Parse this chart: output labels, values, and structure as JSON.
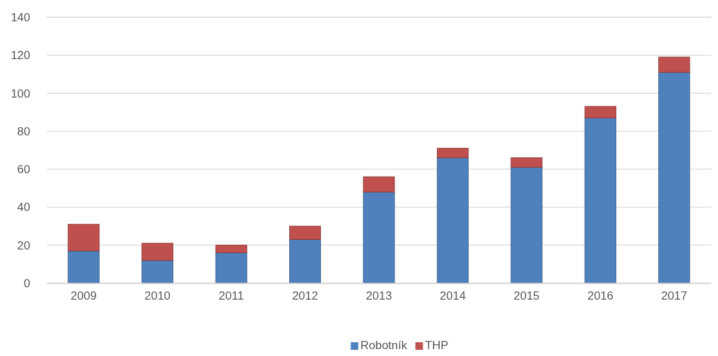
{
  "chart_data": {
    "type": "bar",
    "stacked": true,
    "categories": [
      "2009",
      "2010",
      "2011",
      "2012",
      "2013",
      "2014",
      "2015",
      "2016",
      "2017"
    ],
    "series": [
      {
        "name": "Robotník",
        "color": "#4f81bd",
        "values": [
          17,
          12,
          16,
          23,
          48,
          66,
          61,
          87,
          111
        ]
      },
      {
        "name": "THP",
        "color": "#c0504d",
        "values": [
          14,
          9,
          4,
          7,
          8,
          5,
          5,
          6,
          8
        ]
      }
    ],
    "ylim": [
      0,
      140
    ],
    "yticks": [
      0,
      20,
      40,
      60,
      80,
      100,
      120,
      140
    ],
    "grid": "y",
    "legend": "bottom"
  }
}
